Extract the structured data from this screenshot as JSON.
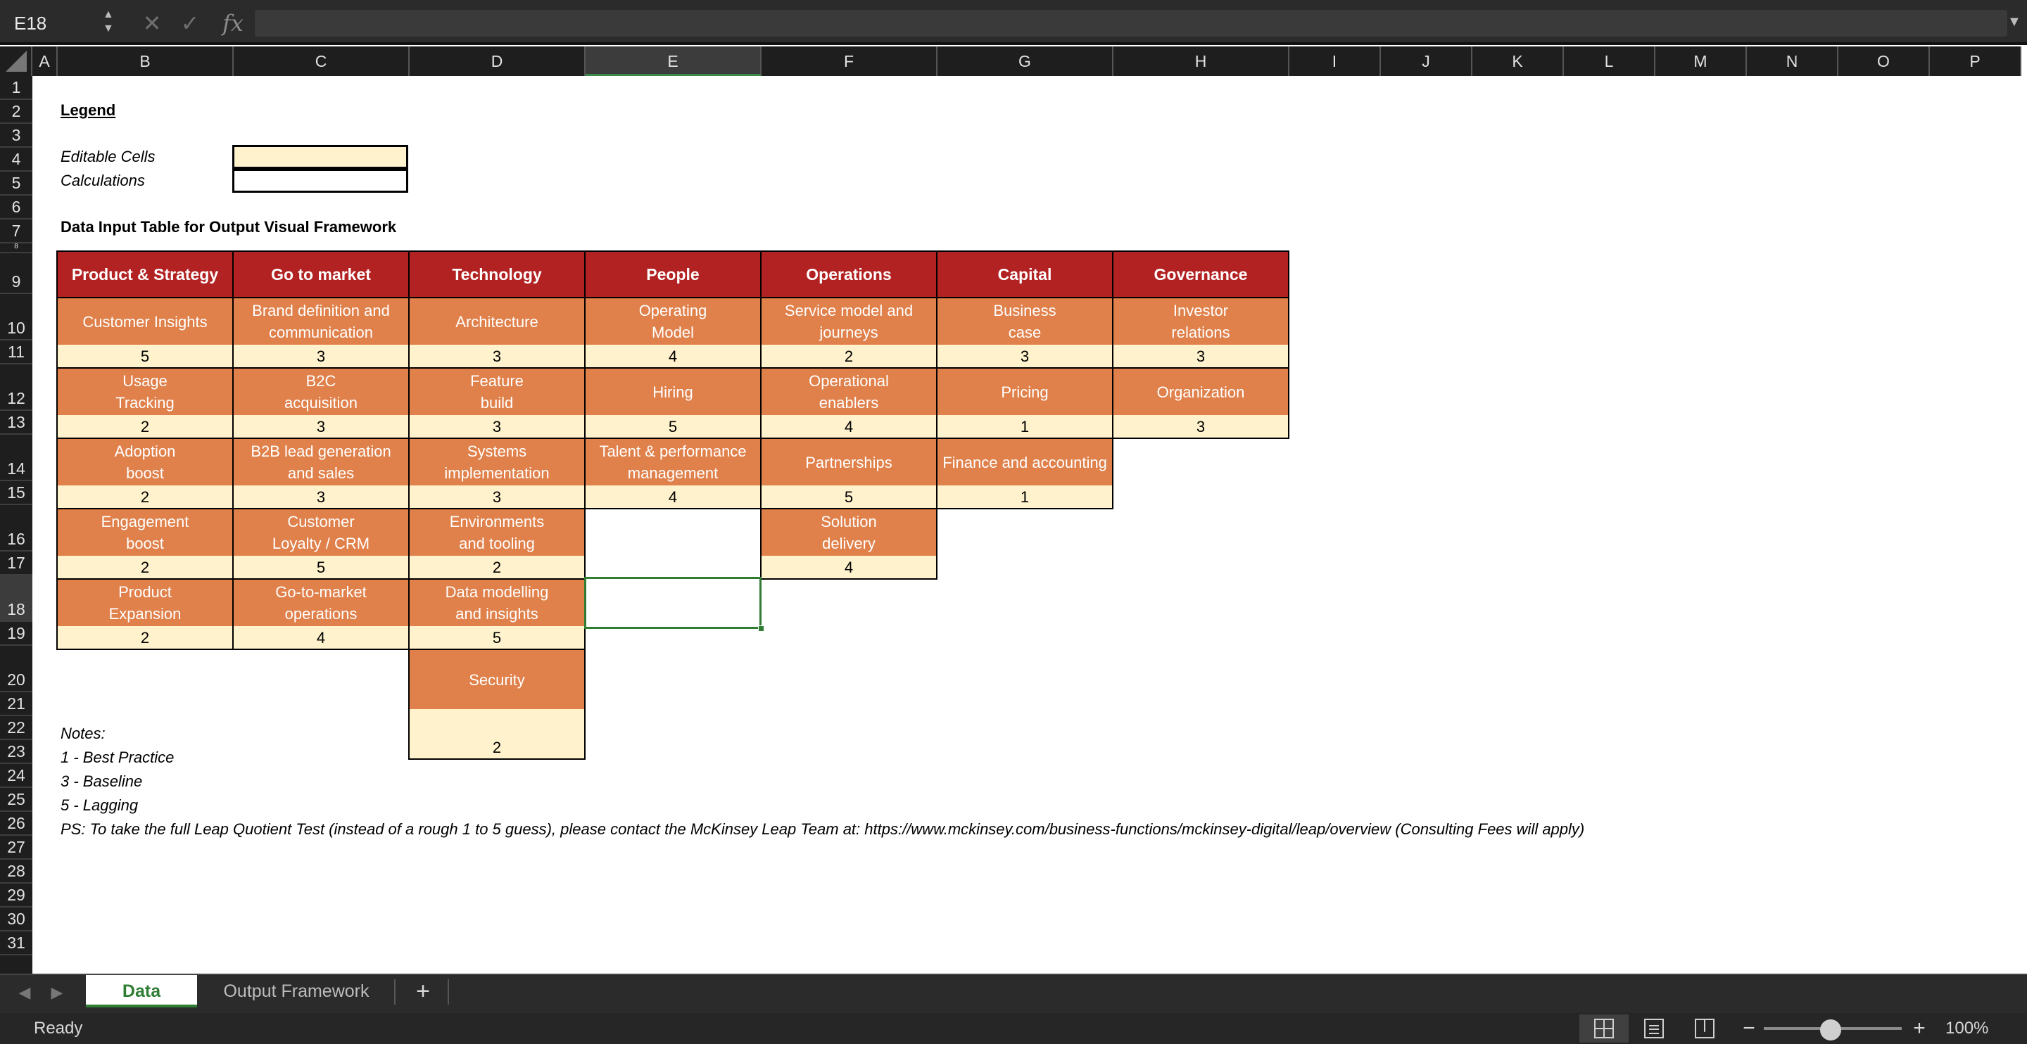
{
  "formula_bar": {
    "name_box": "E18",
    "cancel_icon": "✕",
    "enter_icon": "✓",
    "fx_label": "fx",
    "formula": ""
  },
  "columns": [
    "A",
    "B",
    "C",
    "D",
    "E",
    "F",
    "G",
    "H",
    "I",
    "J",
    "K",
    "L",
    "M",
    "N",
    "O",
    "P"
  ],
  "selected_column": "E",
  "rows": [
    "1",
    "2",
    "3",
    "4",
    "5",
    "6",
    "7",
    "8",
    "9",
    "10",
    "11",
    "12",
    "13",
    "14",
    "15",
    "16",
    "17",
    "18",
    "19",
    "20",
    "21",
    "22",
    "23",
    "24",
    "25",
    "26",
    "27",
    "28",
    "29",
    "30",
    "31"
  ],
  "selected_row": "18",
  "legend": {
    "title": "Legend",
    "editable_label": "Editable Cells",
    "calculations_label": "Calculations",
    "editable_color": "#fff2cc"
  },
  "table_title": "Data Input Table for Output Visual Framework",
  "table": {
    "headers": [
      "Product & Strategy",
      "Go to market",
      "Technology",
      "People",
      "Operations",
      "Capital",
      "Governance"
    ],
    "columns": [
      [
        {
          "name": [
            "Customer Insights"
          ],
          "value": "5"
        },
        {
          "name": [
            "Usage",
            "Tracking"
          ],
          "value": "2"
        },
        {
          "name": [
            "Adoption",
            "boost"
          ],
          "value": "2"
        },
        {
          "name": [
            "Engagement",
            "boost"
          ],
          "value": "2"
        },
        {
          "name": [
            "Product",
            "Expansion"
          ],
          "value": "2"
        }
      ],
      [
        {
          "name": [
            "Brand definition and",
            "communication"
          ],
          "value": "3"
        },
        {
          "name": [
            "B2C",
            "acquisition"
          ],
          "value": "3"
        },
        {
          "name": [
            "B2B lead generation",
            "and sales"
          ],
          "value": "3"
        },
        {
          "name": [
            "Customer",
            "Loyalty / CRM"
          ],
          "value": "5"
        },
        {
          "name": [
            "Go-to-market",
            "operations"
          ],
          "value": "4"
        }
      ],
      [
        {
          "name": [
            "Architecture"
          ],
          "value": "3"
        },
        {
          "name": [
            "Feature",
            "build"
          ],
          "value": "3"
        },
        {
          "name": [
            "Systems",
            "implementation"
          ],
          "value": "3"
        },
        {
          "name": [
            "Environments",
            "and tooling"
          ],
          "value": "2"
        },
        {
          "name": [
            "Data modelling",
            "and insights"
          ],
          "value": "5"
        },
        {
          "name": [
            "Security"
          ],
          "value": "2"
        }
      ],
      [
        {
          "name": [
            "Operating",
            "Model"
          ],
          "value": "4"
        },
        {
          "name": [
            "Hiring"
          ],
          "value": "5"
        },
        {
          "name": [
            "Talent & performance",
            "management"
          ],
          "value": "4"
        }
      ],
      [
        {
          "name": [
            "Service model and",
            "journeys"
          ],
          "value": "2"
        },
        {
          "name": [
            "Operational",
            "enablers"
          ],
          "value": "4"
        },
        {
          "name": [
            "Partnerships"
          ],
          "value": "5"
        },
        {
          "name": [
            "Solution",
            "delivery"
          ],
          "value": "4"
        }
      ],
      [
        {
          "name": [
            "Business",
            "case"
          ],
          "value": "3"
        },
        {
          "name": [
            "Pricing"
          ],
          "value": "1"
        },
        {
          "name": [
            "Finance and accounting"
          ],
          "value": "1"
        }
      ],
      [
        {
          "name": [
            "Investor",
            "relations"
          ],
          "value": "3"
        },
        {
          "name": [
            "Organization"
          ],
          "value": "3"
        }
      ]
    ]
  },
  "notes": [
    "Notes:",
    "1 - Best Practice",
    "3 - Baseline",
    "5 - Lagging",
    "PS: To take the full Leap Quotient Test (instead of a rough 1 to 5 guess), please contact the McKinsey Leap Team at: https://www.mckinsey.com/business-functions/mckinsey-digital/leap/overview (Consulting Fees will apply)"
  ],
  "sheet_tabs": {
    "prev_icon": "◀",
    "next_icon": "▶",
    "tabs": [
      "Data",
      "Output Framework"
    ],
    "active": "Data",
    "add_label": "+"
  },
  "status_bar": {
    "status": "Ready",
    "zoom_minus": "−",
    "zoom_plus": "+",
    "zoom": "100%",
    "zoom_fraction": 0.5
  },
  "colors": {
    "header_red": "#b22222",
    "category_orange": "#e0804a",
    "value_cream": "#fff2cc",
    "accent_green": "#2e7d32"
  }
}
